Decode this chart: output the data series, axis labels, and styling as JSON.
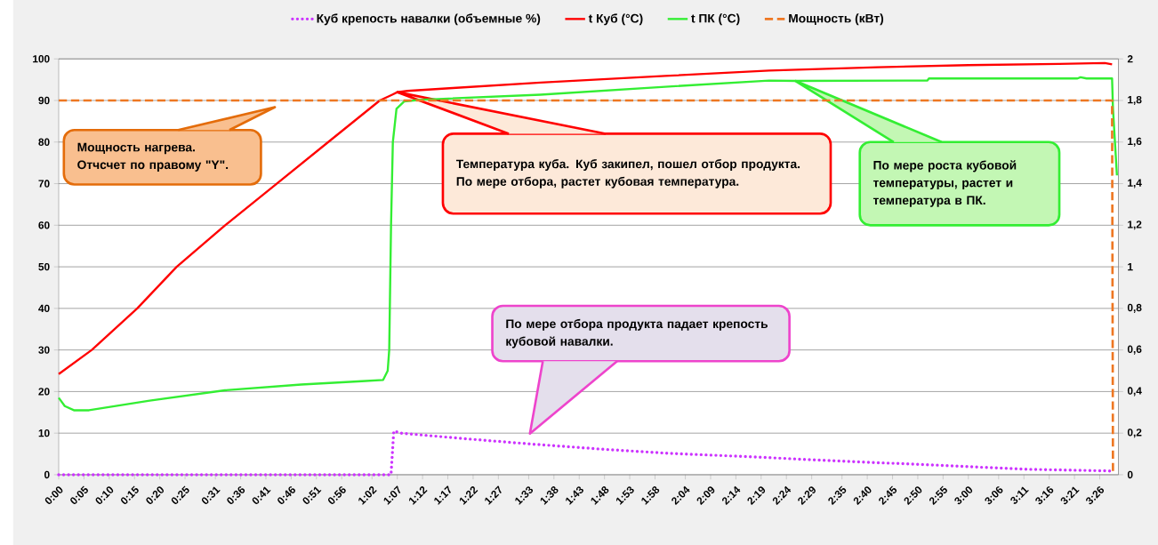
{
  "chart_data": {
    "type": "line",
    "xlim": [
      0,
      3.495
    ],
    "xticks": [
      {
        "value": 0,
        "label": "0:00"
      },
      {
        "value": 0.0833,
        "label": "0:05"
      },
      {
        "value": 0.1667,
        "label": "0:10"
      },
      {
        "value": 0.25,
        "label": "0:15"
      },
      {
        "value": 0.3333,
        "label": "0:20"
      },
      {
        "value": 0.4167,
        "label": "0:25"
      },
      {
        "value": 0.5167,
        "label": "0:31"
      },
      {
        "value": 0.6,
        "label": "0:36"
      },
      {
        "value": 0.6833,
        "label": "0:41"
      },
      {
        "value": 0.7667,
        "label": "0:46"
      },
      {
        "value": 0.85,
        "label": "0:51"
      },
      {
        "value": 0.9333,
        "label": "0:56"
      },
      {
        "value": 1.0333,
        "label": "1:02"
      },
      {
        "value": 1.1167,
        "label": "1:07"
      },
      {
        "value": 1.2,
        "label": "1:12"
      },
      {
        "value": 1.2833,
        "label": "1:17"
      },
      {
        "value": 1.3667,
        "label": "1:22"
      },
      {
        "value": 1.45,
        "label": "1:27"
      },
      {
        "value": 1.55,
        "label": "1:33"
      },
      {
        "value": 1.6333,
        "label": "1:38"
      },
      {
        "value": 1.7167,
        "label": "1:43"
      },
      {
        "value": 1.8,
        "label": "1:48"
      },
      {
        "value": 1.8833,
        "label": "1:53"
      },
      {
        "value": 1.9667,
        "label": "1:58"
      },
      {
        "value": 2.0667,
        "label": "2:04"
      },
      {
        "value": 2.15,
        "label": "2:09"
      },
      {
        "value": 2.2333,
        "label": "2:14"
      },
      {
        "value": 2.3167,
        "label": "2:19"
      },
      {
        "value": 2.4,
        "label": "2:24"
      },
      {
        "value": 2.4833,
        "label": "2:29"
      },
      {
        "value": 2.5833,
        "label": "2:35"
      },
      {
        "value": 2.6667,
        "label": "2:40"
      },
      {
        "value": 2.75,
        "label": "2:45"
      },
      {
        "value": 2.8333,
        "label": "2:50"
      },
      {
        "value": 2.9167,
        "label": "2:55"
      },
      {
        "value": 3.0,
        "label": "3:00"
      },
      {
        "value": 3.1,
        "label": "3:06"
      },
      {
        "value": 3.1833,
        "label": "3:11"
      },
      {
        "value": 3.2667,
        "label": "3:16"
      },
      {
        "value": 3.35,
        "label": "3:21"
      },
      {
        "value": 3.4333,
        "label": "3:26"
      }
    ],
    "ylim": [
      0,
      100
    ],
    "yticks": [
      0,
      10,
      20,
      30,
      40,
      50,
      60,
      70,
      80,
      90,
      100
    ],
    "y2lim": [
      0,
      2
    ],
    "y2ticks": [
      0,
      {
        "value": 0.2,
        "label": "0,2"
      },
      {
        "value": 0.4,
        "label": "0,4"
      },
      {
        "value": 0.6,
        "label": "0,6"
      },
      {
        "value": 0.8,
        "label": "0,8"
      },
      1,
      {
        "value": 1.2,
        "label": "1,2"
      },
      {
        "value": 1.4,
        "label": "1,4"
      },
      {
        "value": 1.6,
        "label": "1,6"
      },
      {
        "value": 1.8,
        "label": "1,8"
      },
      2
    ],
    "grid": "y",
    "legend": "top",
    "series": [
      {
        "name": "Куб крепость навалки (объемные %)",
        "color": "#cc33ff",
        "line_style": "dotted",
        "x": [
          0,
          1.096,
          1.105,
          1.13,
          1.3,
          1.554,
          1.8,
          2.0,
          2.314,
          2.6,
          2.9,
          3.039,
          3.2,
          3.474
        ],
        "values": [
          0,
          0,
          10.5,
          10,
          8.9,
          7.4,
          6.1,
          5.2,
          4.2,
          3.2,
          2.3,
          1.8,
          1.3,
          0.9
        ]
      },
      {
        "name": "t Куб (°C)",
        "color": "#ff0000",
        "line_style": "solid",
        "x": [
          0,
          0.109,
          0.259,
          0.389,
          0.549,
          0.719,
          0.889,
          1.059,
          1.1,
          1.117,
          1.15,
          1.3,
          1.589,
          2.0,
          2.343,
          2.7,
          3.0,
          3.3,
          3.45,
          3.474
        ],
        "values": [
          24.2,
          30,
          40,
          50,
          60,
          70,
          80,
          90,
          91.4,
          92,
          92.3,
          93,
          94.3,
          95.9,
          97.2,
          98,
          98.5,
          98.8,
          99,
          98.7
        ]
      },
      {
        "name": "t ПК (°C)",
        "color": "#33ee33",
        "line_style": "solid",
        "x": [
          0,
          0.02,
          0.05,
          0.1,
          0.3,
          0.548,
          0.8,
          1.0,
          1.07,
          1.085,
          1.09,
          1.096,
          1.102,
          1.114,
          1.14,
          1.2,
          1.589,
          2.0,
          2.343,
          2.43,
          2.865,
          2.87,
          3.36,
          3.37,
          3.39,
          3.474,
          3.477,
          3.49
        ],
        "values": [
          18.5,
          16.5,
          15.5,
          15.5,
          17.8,
          20.3,
          21.7,
          22.5,
          22.8,
          25,
          30,
          60,
          80,
          88,
          89.8,
          90.2,
          91.4,
          93.3,
          94.8,
          94.7,
          94.8,
          95.3,
          95.3,
          95.6,
          95.3,
          95.3,
          88,
          72
        ]
      },
      {
        "name": "Мощность (кВт)",
        "color": "#ee7722",
        "line_style": "dashed",
        "axis": "y2",
        "x": [
          0,
          3.474,
          3.477
        ],
        "values": [
          1.8,
          1.8,
          0
        ]
      }
    ],
    "annotations": [
      "Мощность нагрева. Отчсчет по правому \"Y\".",
      "Температура куба. Куб закипел, пошел отбор продукта. По мере отбора, растет кубовая температура.",
      "По мере роста кубовой температуры, растет и температура в ПК.",
      "По мере отбора продукта падает крепость кубовой навалки."
    ]
  }
}
